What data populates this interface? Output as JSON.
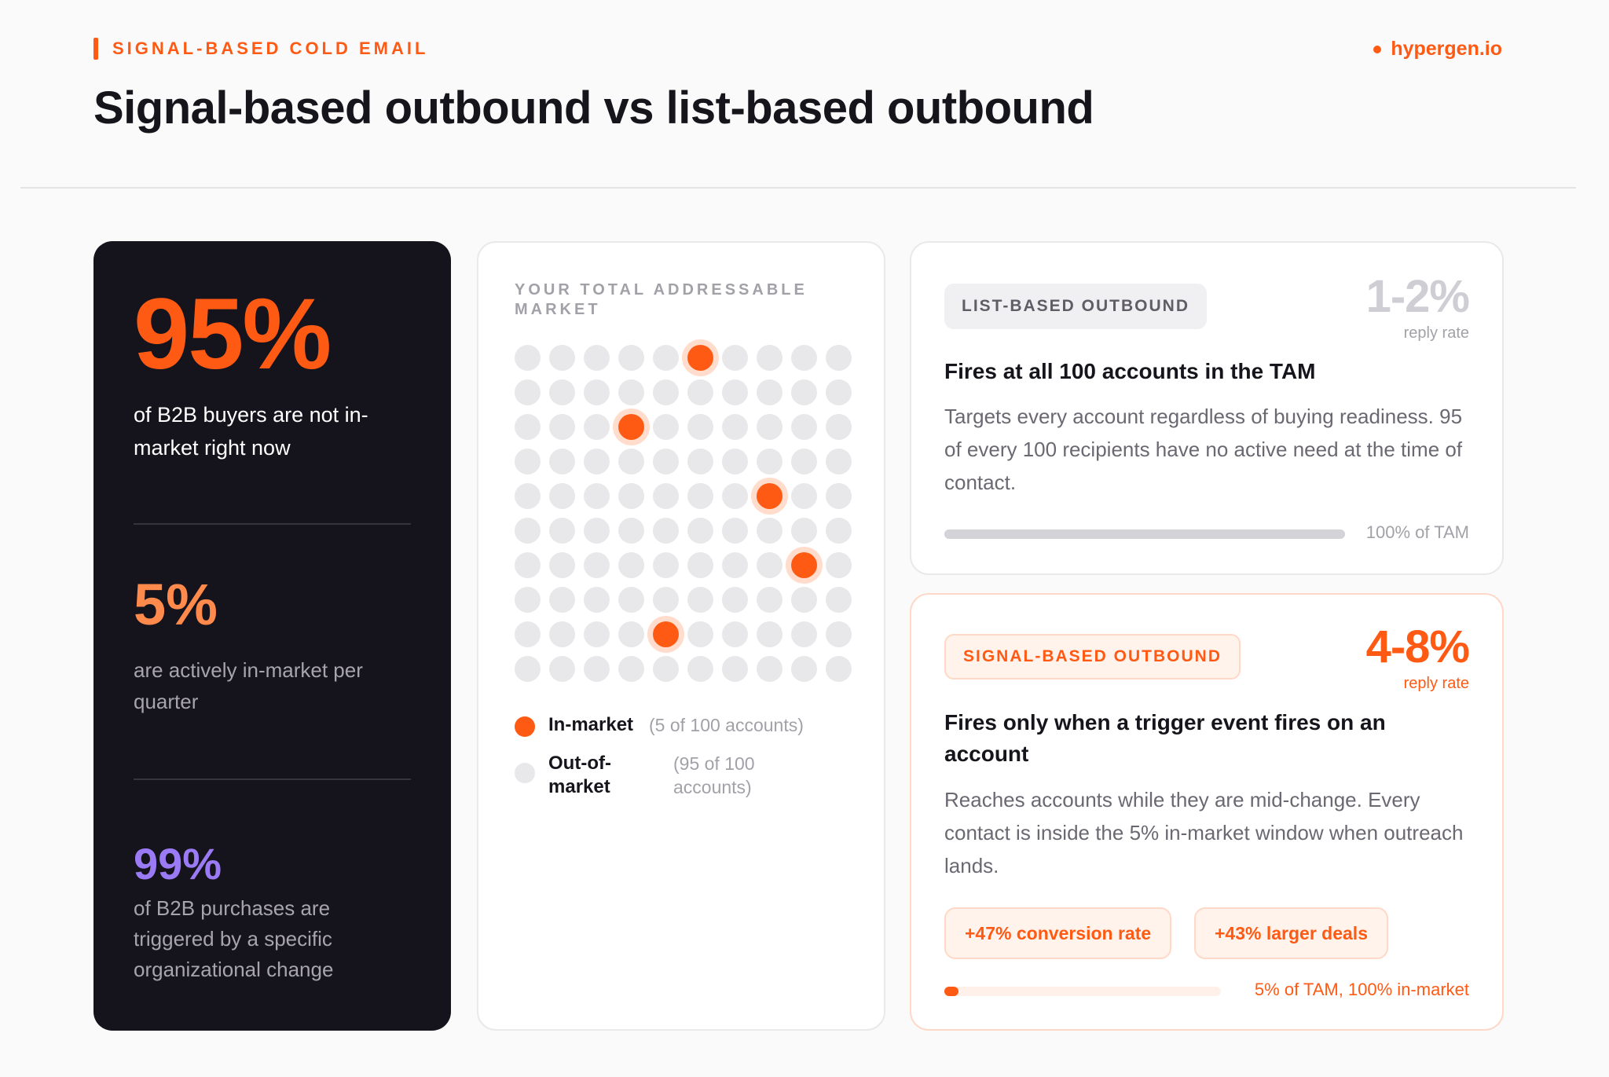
{
  "header": {
    "eyebrow": "SIGNAL-BASED COLD EMAIL",
    "brand": "hypergen.io",
    "title": "Signal-based outbound vs list-based outbound"
  },
  "stats": {
    "primary": {
      "value": "95%",
      "desc": "of B2B buyers are not in-market right now"
    },
    "secondary": {
      "value": "5%",
      "desc": "are actively in-market per quarter"
    },
    "tertiary": {
      "value": "99%",
      "desc": "of B2B purchases are triggered by a specific organizational change"
    }
  },
  "tam": {
    "label": "YOUR TOTAL ADDRESSABLE MARKET",
    "grid": {
      "rows": 10,
      "cols": 10,
      "in_market": [
        [
          0,
          5
        ],
        [
          2,
          3
        ],
        [
          4,
          7
        ],
        [
          6,
          8
        ],
        [
          8,
          4
        ]
      ]
    },
    "legend": [
      {
        "label": "In-market",
        "count": "(5 of 100 accounts)",
        "color": "#ff5a14"
      },
      {
        "label": "Out-of-market",
        "count": "(95 of 100 accounts)",
        "color": "#e8e8eb"
      }
    ]
  },
  "list_based": {
    "pill": "LIST-BASED OUTBOUND",
    "rate": "1-2%",
    "rate_caption": "reply rate",
    "heading": "Fires at all 100 accounts in the TAM",
    "body": "Targets every account regardless of buying readiness. 95 of every 100 recipients have no active need at the time of contact.",
    "bar_fill_percent": 100,
    "bar_caption": "100% of TAM"
  },
  "signal_based": {
    "pill": "SIGNAL-BASED OUTBOUND",
    "rate": "4-8%",
    "rate_caption": "reply rate",
    "heading": "Fires only when a trigger event fires on an account",
    "body": "Reaches accounts while they are mid-change. Every contact is inside the 5% in-market window when outreach lands.",
    "chips": [
      "+47% conversion rate",
      "+43% larger deals"
    ],
    "bar_fill_percent": 5,
    "bar_caption": "5% of TAM, 100% in-market"
  },
  "colors": {
    "accent": "#ff5a14",
    "accent_light": "#ff8a4c",
    "purple": "#9b7bf5",
    "dark": "#15131b",
    "dot_off": "#e8e8eb"
  }
}
